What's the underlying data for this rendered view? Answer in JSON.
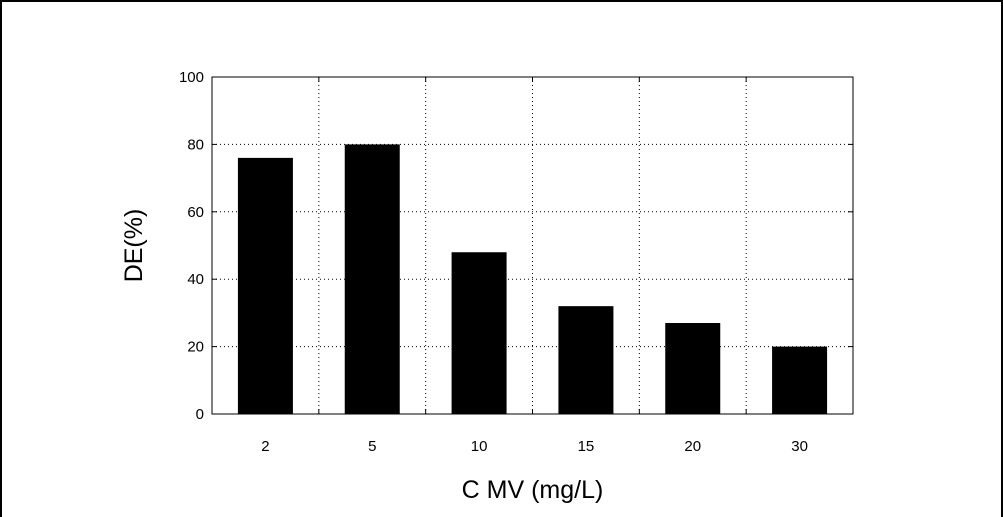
{
  "chart_data": {
    "type": "bar",
    "categories": [
      "2",
      "5",
      "10",
      "15",
      "20",
      "30"
    ],
    "values": [
      76,
      80,
      48,
      32,
      27,
      20
    ],
    "title": "",
    "xlabel": "C MV (mg/L)",
    "ylabel": "DE(%)",
    "ylim": [
      0,
      100
    ],
    "yticks": [
      "0",
      "20",
      "40",
      "60",
      "80",
      "100"
    ],
    "grid": true,
    "bar_color": "#000000"
  }
}
